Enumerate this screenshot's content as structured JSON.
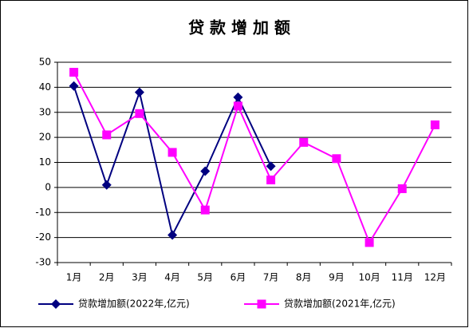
{
  "chart_data": {
    "type": "line",
    "title": "贷 款 增 加 额",
    "categories": [
      "1月",
      "2月",
      "3月",
      "4月",
      "5月",
      "6月",
      "7月",
      "8月",
      "9月",
      "10月",
      "11月",
      "12月"
    ],
    "series": [
      {
        "name": "贷款增加额(2022年,亿元)",
        "color": "#000080",
        "marker": "diamond",
        "values": [
          40.5,
          1,
          38,
          -19,
          6.5,
          36,
          8.5,
          null,
          null,
          null,
          null,
          null
        ]
      },
      {
        "name": "贷款增加额(2021年,亿元)",
        "color": "#ff00ff",
        "marker": "square",
        "values": [
          46,
          21,
          29.5,
          14,
          -9,
          32.5,
          3,
          18,
          11.5,
          -22,
          -0.5,
          25
        ]
      }
    ],
    "ylim": [
      -30,
      50
    ],
    "yticks": [
      -30,
      -20,
      -10,
      0,
      10,
      20,
      30,
      40,
      50
    ],
    "grid": true,
    "legend": "bottom"
  }
}
